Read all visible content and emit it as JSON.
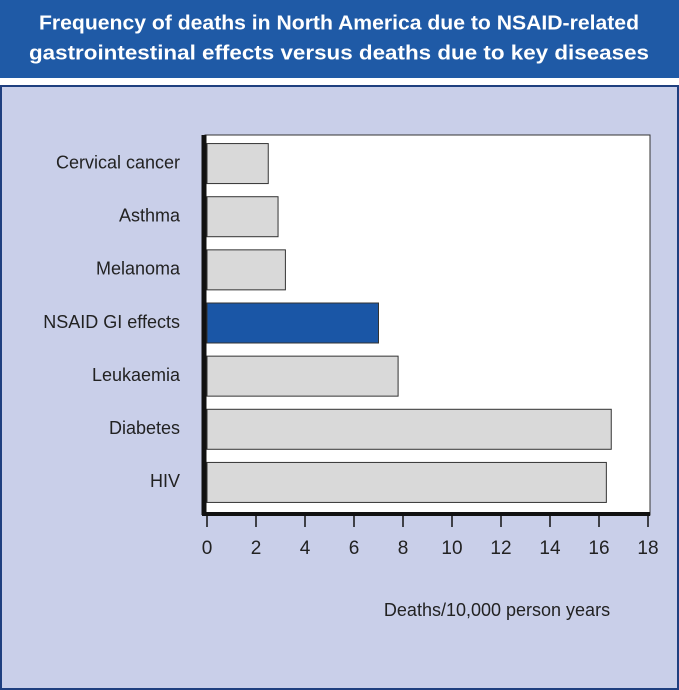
{
  "chart_data": {
    "type": "bar",
    "orientation": "horizontal",
    "title": [
      "Frequency of deaths in North America due to NSAID-related",
      "gastrointestinal effects versus deaths due to key diseases"
    ],
    "x_label": "Deaths/10,000 person years",
    "categories": [
      "Cervical cancer",
      "Asthma",
      "Melanoma",
      "NSAID GI effects",
      "Leukaemia",
      "Diabetes",
      "HIV"
    ],
    "values": [
      2.5,
      2.9,
      3.2,
      7.0,
      7.8,
      16.5,
      16.3
    ],
    "colors": [
      "#d9d9d9",
      "#d9d9d9",
      "#d9d9d9",
      "#1a56a6",
      "#d9d9d9",
      "#d9d9d9",
      "#d9d9d9"
    ],
    "xlim": [
      0,
      18
    ],
    "xticks": [
      0,
      2,
      4,
      6,
      8,
      10,
      12,
      14,
      16,
      18
    ],
    "grid": false
  }
}
